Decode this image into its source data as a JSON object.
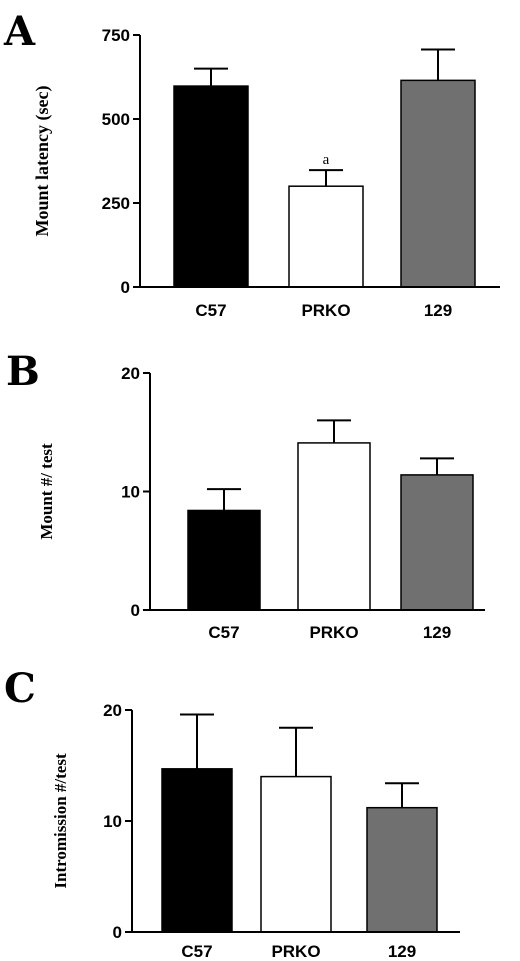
{
  "chart_data": [
    {
      "type": "bar",
      "panel": "A",
      "ylabel": "Mount latency (sec)",
      "categories": [
        "C57",
        "PRKO",
        "129"
      ],
      "values": [
        598,
        300,
        615
      ],
      "errors": [
        52,
        48,
        92
      ],
      "colors": [
        "#000000",
        "#ffffff",
        "#707070"
      ],
      "annotations": [
        "",
        "a",
        ""
      ],
      "ylim": [
        0,
        750
      ],
      "yticks": [
        0,
        250,
        500,
        750
      ],
      "ytick_labels": [
        "0",
        "250",
        "500",
        "750"
      ],
      "grid": false
    },
    {
      "type": "bar",
      "panel": "B",
      "ylabel": "Mount #/ test",
      "categories": [
        "C57",
        "PRKO",
        "129"
      ],
      "values": [
        8.4,
        14.1,
        11.4
      ],
      "errors": [
        1.8,
        1.9,
        1.4
      ],
      "colors": [
        "#000000",
        "#ffffff",
        "#707070"
      ],
      "annotations": [
        "",
        "",
        ""
      ],
      "ylim": [
        0,
        20
      ],
      "yticks": [
        0,
        10,
        20
      ],
      "ytick_labels": [
        "0",
        "10",
        "20"
      ],
      "grid": false
    },
    {
      "type": "bar",
      "panel": "C",
      "ylabel": "Intromission #/test",
      "categories": [
        "C57",
        "PRKO",
        "129"
      ],
      "values": [
        14.7,
        14.0,
        11.2
      ],
      "errors": [
        4.9,
        4.4,
        2.2
      ],
      "colors": [
        "#000000",
        "#ffffff",
        "#707070"
      ],
      "annotations": [
        "",
        "",
        ""
      ],
      "ylim": [
        0,
        20
      ],
      "yticks": [
        0,
        10,
        20
      ],
      "ytick_labels": [
        "0",
        "10",
        "20"
      ],
      "grid": false
    }
  ]
}
